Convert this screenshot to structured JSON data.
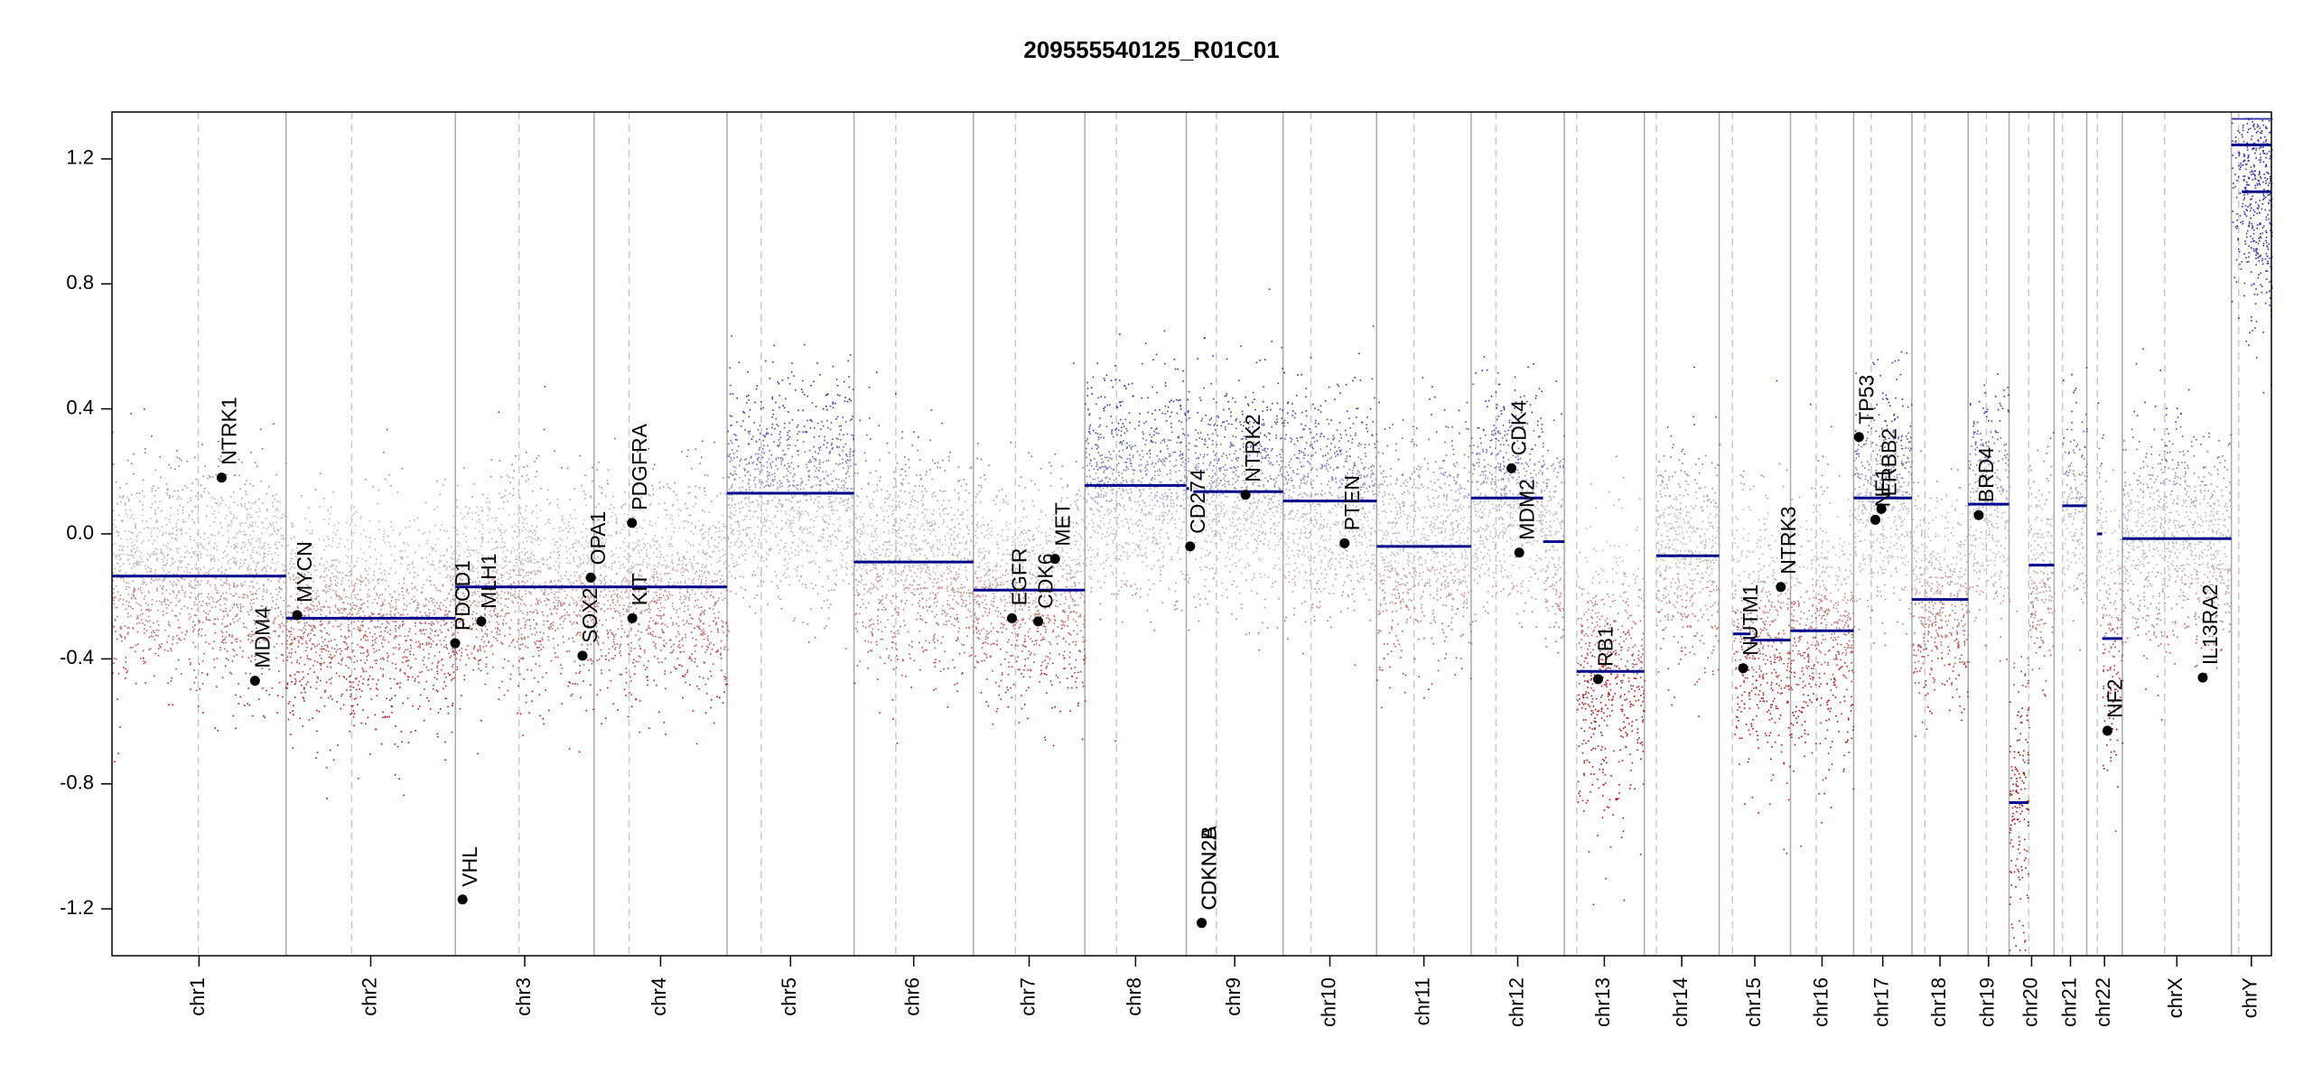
{
  "chart_data": {
    "type": "scatter",
    "title": "209555540125_R01C01",
    "xlabel": "",
    "ylabel": "",
    "ylim": [
      -1.35,
      1.35
    ],
    "yticks": [
      -1.2,
      -0.8,
      -0.4,
      0.0,
      0.4,
      0.8,
      1.2
    ],
    "ytick_labels": [
      "-1.2",
      "-0.8",
      "-0.4",
      "0.0",
      "0.4",
      "0.8",
      "1.2"
    ],
    "colors": {
      "segment": "#00008b",
      "gain": "#3333aa",
      "loss": "#aa1111",
      "neutral": "#aaaaaa",
      "grid": "#bbbbbb"
    },
    "chromosomes": [
      {
        "name": "chr1",
        "length": 248.9,
        "centromere": 123.4,
        "segments": [
          {
            "start": 0,
            "end": 248.9,
            "value": -0.135
          }
        ]
      },
      {
        "name": "chr2",
        "length": 242.2,
        "centromere": 93.9,
        "segments": [
          {
            "start": 0,
            "end": 242.2,
            "value": -0.27
          }
        ]
      },
      {
        "name": "chr3",
        "length": 198.3,
        "centromere": 90.9,
        "segments": [
          {
            "start": 0,
            "end": 198.3,
            "value": -0.17
          }
        ]
      },
      {
        "name": "chr4",
        "length": 190.2,
        "centromere": 50.0,
        "segments": [
          {
            "start": 0,
            "end": 190.2,
            "value": -0.17
          }
        ]
      },
      {
        "name": "chr5",
        "length": 181.5,
        "centromere": 48.8,
        "segments": [
          {
            "start": 0,
            "end": 181.5,
            "value": 0.13
          }
        ]
      },
      {
        "name": "chr6",
        "length": 170.8,
        "centromere": 59.8,
        "segments": [
          {
            "start": 0,
            "end": 170.8,
            "value": -0.09
          }
        ]
      },
      {
        "name": "chr7",
        "length": 159.3,
        "centromere": 60.1,
        "segments": [
          {
            "start": 0,
            "end": 159.3,
            "value": -0.18
          }
        ]
      },
      {
        "name": "chr8",
        "length": 145.1,
        "centromere": 45.2,
        "segments": [
          {
            "start": 0,
            "end": 145.1,
            "value": 0.155
          }
        ]
      },
      {
        "name": "chr9",
        "length": 138.4,
        "centromere": 43.0,
        "segments": [
          {
            "start": 0,
            "end": 4,
            "value": 0.145
          },
          {
            "start": 10,
            "end": 138.4,
            "value": 0.135
          }
        ]
      },
      {
        "name": "chr10",
        "length": 133.8,
        "centromere": 39.8,
        "segments": [
          {
            "start": 0,
            "end": 133.8,
            "value": 0.105
          }
        ]
      },
      {
        "name": "chr11",
        "length": 135.1,
        "centromere": 53.4,
        "segments": [
          {
            "start": 0,
            "end": 135.1,
            "value": -0.04
          }
        ]
      },
      {
        "name": "chr12",
        "length": 133.3,
        "centromere": 35.5,
        "segments": [
          {
            "start": 0,
            "end": 103,
            "value": 0.115
          },
          {
            "start": 103,
            "end": 133.3,
            "value": -0.025
          }
        ]
      },
      {
        "name": "chr13",
        "length": 114.4,
        "centromere": 17.7,
        "segments": [
          {
            "start": 17.7,
            "end": 114.4,
            "value": -0.44
          }
        ]
      },
      {
        "name": "chr14",
        "length": 107.0,
        "centromere": 17.2,
        "segments": [
          {
            "start": 17.2,
            "end": 107.0,
            "value": -0.07
          }
        ]
      },
      {
        "name": "chr15",
        "length": 102.0,
        "centromere": 19.0,
        "segments": [
          {
            "start": 20,
            "end": 45,
            "value": -0.32
          },
          {
            "start": 45,
            "end": 102.0,
            "value": -0.34
          }
        ]
      },
      {
        "name": "chr16",
        "length": 90.3,
        "centromere": 36.8,
        "segments": [
          {
            "start": 0,
            "end": 90.3,
            "value": -0.31
          }
        ]
      },
      {
        "name": "chr17",
        "length": 83.3,
        "centromere": 25.1,
        "segments": [
          {
            "start": 0,
            "end": 83.3,
            "value": 0.115
          }
        ]
      },
      {
        "name": "chr18",
        "length": 80.4,
        "centromere": 18.5,
        "segments": [
          {
            "start": 0,
            "end": 80.4,
            "value": -0.21
          }
        ]
      },
      {
        "name": "chr19",
        "length": 58.6,
        "centromere": 26.2,
        "segments": [
          {
            "start": 0,
            "end": 58.6,
            "value": 0.095
          }
        ]
      },
      {
        "name": "chr20",
        "length": 64.4,
        "centromere": 28.1,
        "segments": [
          {
            "start": 0,
            "end": 28.1,
            "value": -0.86
          },
          {
            "start": 28.1,
            "end": 64.4,
            "value": -0.1
          }
        ]
      },
      {
        "name": "chr21",
        "length": 46.7,
        "centromere": 12.0,
        "segments": [
          {
            "start": 12,
            "end": 46.7,
            "value": 0.09
          }
        ]
      },
      {
        "name": "chr22",
        "length": 50.8,
        "centromere": 15.0,
        "segments": [
          {
            "start": 15,
            "end": 22,
            "value": 0.0
          },
          {
            "start": 22,
            "end": 50.8,
            "value": -0.335
          }
        ]
      },
      {
        "name": "chrX",
        "length": 156.0,
        "centromere": 60.6,
        "segments": [
          {
            "start": 0,
            "end": 156.0,
            "value": -0.015
          }
        ]
      },
      {
        "name": "chrY",
        "length": 57.2,
        "centromere": 10.4,
        "segments": [
          {
            "start": 0,
            "end": 57.2,
            "value": 1.245
          },
          {
            "start": 15,
            "end": 57.2,
            "value": 1.095
          }
        ]
      }
    ],
    "genes": [
      {
        "name": "NTRK1",
        "chr": "chr1",
        "pos": 156.8,
        "value": 0.18
      },
      {
        "name": "MDM4",
        "chr": "chr1",
        "pos": 204.5,
        "value": -0.47
      },
      {
        "name": "MYCN",
        "chr": "chr2",
        "pos": 15.9,
        "value": -0.26
      },
      {
        "name": "VHL",
        "chr": "chr3",
        "pos": 10.2,
        "value": -1.17
      },
      {
        "name": "PDCD1",
        "chr": "chr2",
        "pos": 241.9,
        "value": -0.35
      },
      {
        "name": "MLH1",
        "chr": "chr3",
        "pos": 37.0,
        "value": -0.28
      },
      {
        "name": "SOX2",
        "chr": "chr3",
        "pos": 181.7,
        "value": -0.39
      },
      {
        "name": "OPA1",
        "chr": "chr3",
        "pos": 193.6,
        "value": -0.14
      },
      {
        "name": "PDGFRA",
        "chr": "chr4",
        "pos": 54.2,
        "value": 0.035
      },
      {
        "name": "KIT",
        "chr": "chr4",
        "pos": 54.7,
        "value": -0.27
      },
      {
        "name": "EGFR",
        "chr": "chr7",
        "pos": 55.1,
        "value": -0.27
      },
      {
        "name": "CDK6",
        "chr": "chr7",
        "pos": 92.6,
        "value": -0.28
      },
      {
        "name": "MET",
        "chr": "chr7",
        "pos": 116.7,
        "value": -0.08
      },
      {
        "name": "CD274",
        "chr": "chr9",
        "pos": 5.5,
        "value": -0.04
      },
      {
        "name": "CDKN2A",
        "chr": "chr9",
        "pos": 21.97,
        "value": -1.245
      },
      {
        "name": "CDKN2B",
        "chr": "chr9",
        "pos": 22.0,
        "value": -1.245
      },
      {
        "name": "NTRK2",
        "chr": "chr9",
        "pos": 84.7,
        "value": 0.125
      },
      {
        "name": "PTEN",
        "chr": "chr10",
        "pos": 87.9,
        "value": -0.03
      },
      {
        "name": "CDK4",
        "chr": "chr12",
        "pos": 57.7,
        "value": 0.21
      },
      {
        "name": "MDM2",
        "chr": "chr12",
        "pos": 68.8,
        "value": -0.06
      },
      {
        "name": "RB1",
        "chr": "chr13",
        "pos": 48.3,
        "value": -0.465
      },
      {
        "name": "NUTM1",
        "chr": "chr15",
        "pos": 34.3,
        "value": -0.43
      },
      {
        "name": "NTRK3",
        "chr": "chr15",
        "pos": 88.1,
        "value": -0.17
      },
      {
        "name": "TP53",
        "chr": "chr17",
        "pos": 7.6,
        "value": 0.31
      },
      {
        "name": "ERBB2",
        "chr": "chr17",
        "pos": 39.7,
        "value": 0.08
      },
      {
        "name": "NF1",
        "chr": "chr17",
        "pos": 31.1,
        "value": 0.045
      },
      {
        "name": "BRD4",
        "chr": "chr19",
        "pos": 15.2,
        "value": 0.06
      },
      {
        "name": "NF2",
        "chr": "chr22",
        "pos": 29.6,
        "value": -0.63
      },
      {
        "name": "IL13RA2",
        "chr": "chrX",
        "pos": 115.0,
        "value": -0.46
      }
    ]
  }
}
